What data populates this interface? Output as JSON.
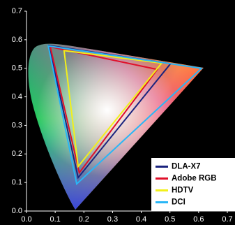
{
  "chart_data": {
    "type": "line",
    "closed": true,
    "xlim": [
      0,
      0.7
    ],
    "ylim": [
      0,
      0.7
    ],
    "xticks": [
      {
        "value": 0,
        "label": "0.0"
      },
      0.1,
      0.2,
      0.3,
      0.4,
      0.5,
      0.6,
      0.7
    ],
    "yticks": [
      {
        "value": 0,
        "label": "0.0"
      },
      0.1,
      0.2,
      0.3,
      0.4,
      0.5,
      0.6,
      0.7
    ],
    "legend": "lower right",
    "series": [
      {
        "name": "DLA-X7",
        "color": "#1a237e",
        "x": [
          0.502,
          0.078,
          0.18
        ],
        "y": [
          0.516,
          0.58,
          0.117
        ]
      },
      {
        "name": "Adobe RGB",
        "color": "#e0102a",
        "x": [
          0.456,
          0.083,
          0.184
        ],
        "y": [
          0.496,
          0.575,
          0.134
        ]
      },
      {
        "name": "HDTV",
        "color": "#f2f01a",
        "x": [
          0.471,
          0.131,
          0.18
        ],
        "y": [
          0.518,
          0.562,
          0.156
        ]
      },
      {
        "name": "DCI",
        "color": "#29b6f6",
        "x": [
          0.61,
          0.076,
          0.175
        ],
        "y": [
          0.5,
          0.578,
          0.095
        ]
      }
    ]
  }
}
